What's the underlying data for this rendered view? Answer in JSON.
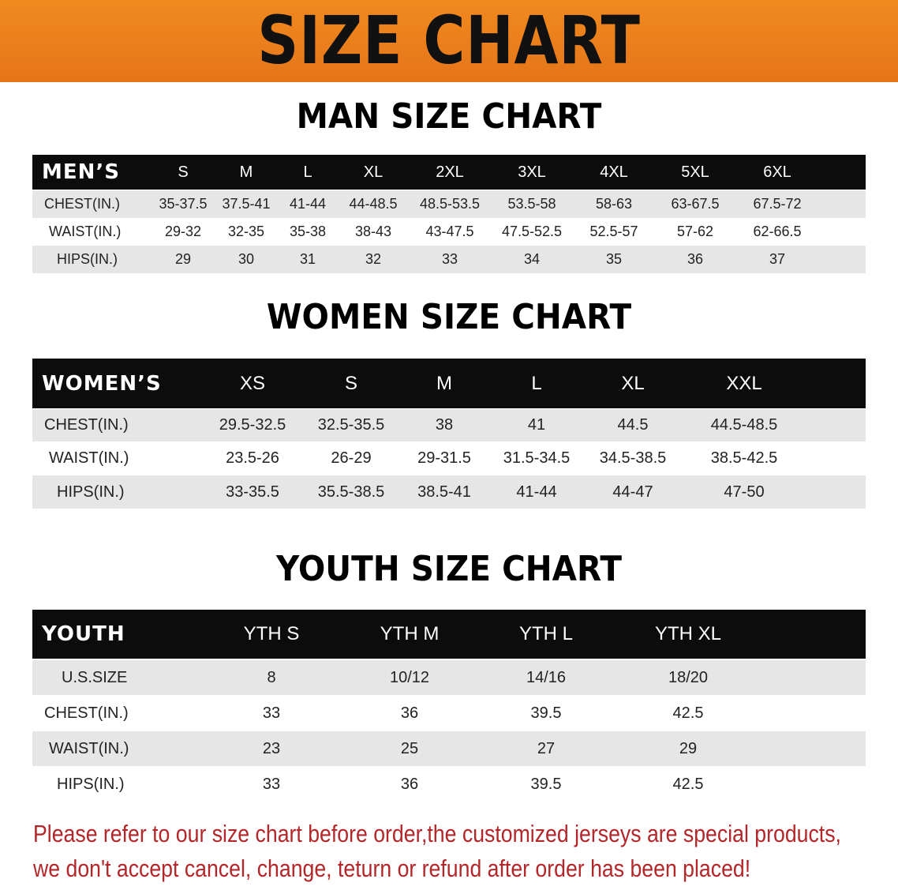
{
  "banner_title": "SIZE CHART",
  "tables": [
    {
      "title": "MAN SIZE CHART",
      "header": [
        "MEN’S",
        "S",
        "M",
        "L",
        "XL",
        "2XL",
        "3XL",
        "4XL",
        "5XL",
        "6XL"
      ],
      "rows": [
        [
          "CHEST(IN.)",
          "35-37.5",
          "37.5-41",
          "41-44",
          "44-48.5",
          "48.5-53.5",
          "53.5-58",
          "58-63",
          "63-67.5",
          "67.5-72"
        ],
        [
          "WAIST(IN.)",
          "29-32",
          "32-35",
          "35-38",
          "38-43",
          "43-47.5",
          "47.5-52.5",
          "52.5-57",
          "57-62",
          "62-66.5"
        ],
        [
          "HIPS(IN.)",
          "29",
          "30",
          "31",
          "32",
          "33",
          "34",
          "35",
          "36",
          "37"
        ]
      ]
    },
    {
      "title": "WOMEN SIZE CHART",
      "header": [
        "WOMEN’S",
        "XS",
        "S",
        "M",
        "L",
        "XL",
        "XXL"
      ],
      "rows": [
        [
          "CHEST(IN.)",
          "29.5-32.5",
          "32.5-35.5",
          "38",
          "41",
          "44.5",
          "44.5-48.5"
        ],
        [
          "WAIST(IN.)",
          "23.5-26",
          "26-29",
          "29-31.5",
          "31.5-34.5",
          "34.5-38.5",
          "38.5-42.5"
        ],
        [
          "HIPS(IN.)",
          "33-35.5",
          "35.5-38.5",
          "38.5-41",
          "41-44",
          "44-47",
          "47-50"
        ]
      ]
    },
    {
      "title": "YOUTH SIZE CHART",
      "header": [
        "YOUTH",
        "YTH S",
        "YTH M",
        "YTH L",
        "YTH XL"
      ],
      "rows": [
        [
          "U.S.SIZE",
          "8",
          "10/12",
          "14/16",
          "18/20"
        ],
        [
          "CHEST(IN.)",
          "33",
          "36",
          "39.5",
          "42.5"
        ],
        [
          "WAIST(IN.)",
          "23",
          "25",
          "27",
          "29"
        ],
        [
          "HIPS(IN.)",
          "33",
          "36",
          "39.5",
          "42.5"
        ]
      ]
    }
  ],
  "notice": [
    "Please refer to our size chart before order,the customized jerseys are special products,",
    "we don't accept cancel, change, teturn or refund after order has been placed!"
  ],
  "colors": {
    "banner": "#ec801c",
    "header_row": "#0c0c0c",
    "alt_row": "#e6e6e6",
    "notice_text": "#b3262a"
  }
}
